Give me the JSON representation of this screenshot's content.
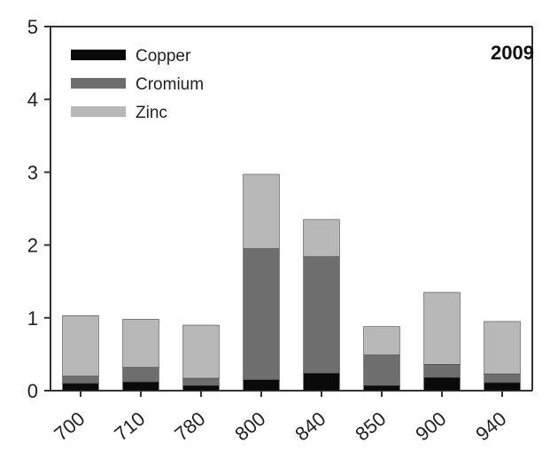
{
  "chart_data": {
    "type": "bar",
    "stacked": true,
    "title": "2009",
    "xlabel": "",
    "ylabel": "",
    "ylim": [
      0,
      5
    ],
    "yticks": [
      0,
      1,
      2,
      3,
      4,
      5
    ],
    "categories": [
      "700",
      "710",
      "780",
      "800",
      "840",
      "850",
      "900",
      "940"
    ],
    "series": [
      {
        "name": "Copper",
        "color": "#0a0a0a",
        "values": [
          0.1,
          0.12,
          0.07,
          0.15,
          0.24,
          0.07,
          0.18,
          0.11
        ]
      },
      {
        "name": "Cromium",
        "color": "#6e6e6e",
        "values": [
          0.1,
          0.2,
          0.1,
          1.8,
          1.6,
          0.42,
          0.18,
          0.12
        ]
      },
      {
        "name": "Zinc",
        "color": "#b8b8b8",
        "values": [
          0.83,
          0.66,
          0.73,
          1.02,
          0.51,
          0.39,
          0.99,
          0.72
        ]
      }
    ],
    "legend_position": "top-left",
    "grid": false
  }
}
